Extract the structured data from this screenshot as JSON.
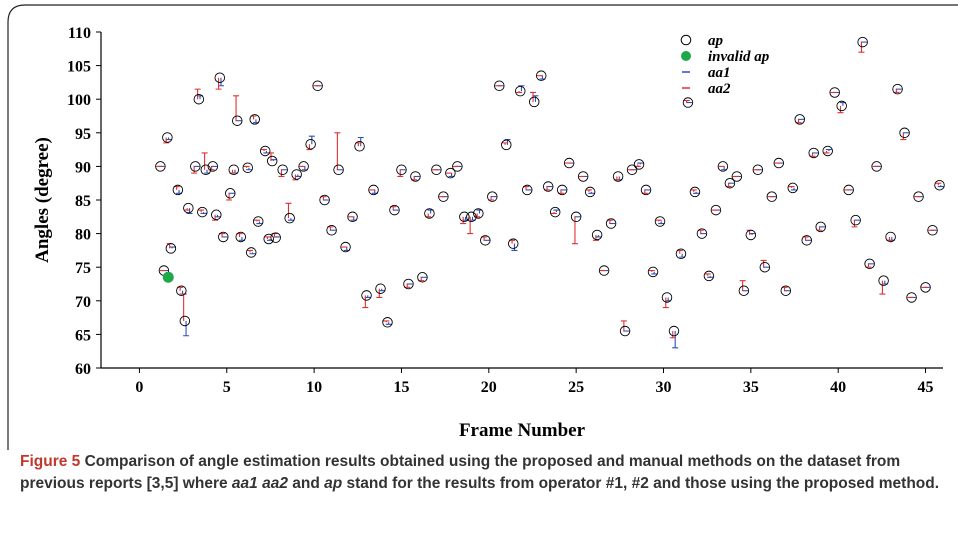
{
  "chart_data": {
    "type": "scatter",
    "ylabel": "Angles (degree)",
    "xlabel": "Frame Number",
    "xlim": [
      -2.2,
      46
    ],
    "ylim": [
      60,
      110
    ],
    "xticks": [
      0,
      5,
      10,
      15,
      20,
      25,
      30,
      35,
      40,
      45
    ],
    "yticks": [
      60,
      65,
      70,
      75,
      80,
      85,
      90,
      95,
      100,
      105,
      110
    ],
    "legend": "top-right",
    "x": [
      1.2,
      1.4,
      1.6,
      1.8,
      2.2,
      2.4,
      2.6,
      2.8,
      3.2,
      3.4,
      3.6,
      3.8,
      4.2,
      4.4,
      4.6,
      4.8,
      5.2,
      5.4,
      5.6,
      5.8,
      6.2,
      6.4,
      6.6,
      6.8,
      7.2,
      7.4,
      7.6,
      7.8,
      8.2,
      8.6,
      9.0,
      9.4,
      9.8,
      10.2,
      10.6,
      11.0,
      11.4,
      11.8,
      12.2,
      12.6,
      13.0,
      13.4,
      13.8,
      14.2,
      14.6,
      15.0,
      15.4,
      15.8,
      16.2,
      16.6,
      17.0,
      17.4,
      17.8,
      18.2,
      18.6,
      19.0,
      19.4,
      19.8,
      20.2,
      20.6,
      21.0,
      21.4,
      21.8,
      22.2,
      22.6,
      23.0,
      23.4,
      23.8,
      24.2,
      24.6,
      25.0,
      25.4,
      25.8,
      26.2,
      26.6,
      27.0,
      27.4,
      27.8,
      28.2,
      28.6,
      29.0,
      29.4,
      29.8,
      30.2,
      30.6,
      31.0,
      31.4,
      31.8,
      32.2,
      32.6,
      33.0,
      33.4,
      33.8,
      34.2,
      34.6,
      35.0,
      35.4,
      35.8,
      36.2,
      36.6,
      37.0,
      37.4,
      37.8,
      38.2,
      38.6,
      39.0,
      39.4,
      39.8,
      40.2,
      40.6,
      41.0,
      41.4,
      41.8,
      42.2,
      42.6,
      43.0,
      43.4,
      43.8,
      44.2,
      44.6,
      45.0,
      45.4,
      45.8
    ],
    "series": [
      {
        "name": "ap",
        "marker": "circle",
        "color": "#000000",
        "values": [
          90,
          74.5,
          94.3,
          77.8,
          86.5,
          71.5,
          67,
          83.8,
          90,
          100,
          83.2,
          89.5,
          90,
          82.8,
          103.2,
          79.5,
          86,
          89.5,
          96.8,
          79.5,
          89.8,
          77.2,
          97,
          81.8,
          92.3,
          79.2,
          90.8,
          79.4,
          89.5,
          82.3,
          88.8,
          90,
          93.3,
          102,
          85,
          80.5,
          89.5,
          78,
          82.5,
          93,
          70.8,
          86.5,
          71.8,
          66.8,
          83.5,
          89.5,
          72.5,
          88.5,
          73.5,
          83,
          89.5,
          85.5,
          89,
          90,
          82.5,
          82.5,
          83,
          79,
          85.5,
          102,
          93.2,
          78.5,
          101.2,
          86.5,
          99.6,
          103.5,
          87,
          83.2,
          86.5,
          90.5,
          82.5,
          88.5,
          86.2,
          79.8,
          74.5,
          81.5,
          88.5,
          65.5,
          89.5,
          90.3,
          86.5,
          74.3,
          81.8,
          70.5,
          65.5,
          77,
          99.5,
          86.2,
          80,
          73.7,
          83.5,
          90,
          87.5,
          88.5,
          71.5,
          79.8,
          89.5,
          75,
          85.5,
          90.5,
          71.5,
          86.8,
          97,
          79,
          92,
          81,
          92.3,
          101,
          99,
          86.5,
          82,
          108.5,
          75.5,
          90,
          73,
          79.5,
          101.5,
          95,
          70.5,
          85.5,
          72,
          80.5,
          87.2
        ]
      },
      {
        "name": "invalid ap",
        "marker": "dot",
        "color": "#1fa84a",
        "x": [
          1.65
        ],
        "values": [
          73.5
        ]
      },
      {
        "name": "aa1",
        "marker": "dash",
        "color": "#2f4fbf",
        "values": [
          90,
          74.5,
          94,
          78,
          86,
          71,
          64.8,
          83,
          90,
          100.5,
          83,
          89,
          90,
          82.5,
          102,
          79.5,
          86,
          89,
          96.8,
          79,
          89.5,
          77,
          96.5,
          81.5,
          92,
          79,
          91,
          79.5,
          89.5,
          82,
          88.5,
          89.5,
          94.5,
          102,
          85,
          80.5,
          89.5,
          77.5,
          82,
          94.3,
          70.5,
          86,
          71.5,
          66.5,
          83.5,
          89.5,
          72.5,
          88.5,
          73.5,
          83.5,
          89.5,
          85.5,
          88.5,
          90,
          82,
          82,
          83.5,
          79,
          85.5,
          102,
          94,
          77.5,
          102,
          86.5,
          100.5,
          103,
          87,
          83.5,
          86.5,
          90.5,
          82.5,
          88.5,
          86,
          79.5,
          74.5,
          81.5,
          88,
          65.5,
          89.5,
          90.5,
          86.5,
          74,
          81.5,
          70,
          63,
          76.5,
          99.5,
          86,
          80,
          73.5,
          83.5,
          89.5,
          87.5,
          88.5,
          71.5,
          80,
          89.5,
          75,
          85.5,
          90.5,
          71.5,
          86.5,
          97,
          79,
          92,
          81,
          92.5,
          101,
          99.5,
          86.5,
          82,
          108.5,
          75.5,
          90,
          72.5,
          79,
          101.5,
          95,
          70.5,
          85.5,
          72,
          80.5,
          87
        ]
      },
      {
        "name": "aa2",
        "marker": "dash",
        "color": "#e03131",
        "values": [
          90,
          74.5,
          93.5,
          78.5,
          87,
          72,
          71,
          83.5,
          89,
          101.5,
          83.5,
          92,
          89.5,
          82,
          101.5,
          80,
          85,
          89,
          100.5,
          80,
          90,
          77.5,
          97.5,
          82,
          92.5,
          79.5,
          92,
          80,
          88.5,
          84.5,
          88,
          90,
          92.5,
          102,
          85.5,
          81,
          95,
          78,
          82.5,
          93.5,
          69,
          86.5,
          70.5,
          67,
          84,
          88.5,
          72,
          88,
          73,
          82.5,
          89.5,
          85.5,
          89,
          90,
          81.5,
          80,
          82.5,
          79.5,
          85,
          102,
          93.5,
          79,
          101,
          87,
          101,
          103.5,
          86.5,
          83,
          86,
          90.5,
          78.5,
          88.5,
          86.5,
          79,
          74.5,
          82,
          88,
          67,
          89.5,
          90,
          86,
          74.5,
          82,
          69,
          64.5,
          77.5,
          99.8,
          86.5,
          80.5,
          74,
          83.5,
          90,
          87,
          88.5,
          73,
          80.5,
          89.5,
          76,
          85.5,
          90.5,
          72,
          87,
          96.5,
          79.5,
          91.5,
          80.5,
          92,
          101,
          98,
          86.5,
          81,
          107,
          75,
          90,
          71,
          79,
          101,
          94,
          70.5,
          85.5,
          72,
          80.5,
          87.5
        ]
      }
    ]
  },
  "caption": {
    "label": "Figure 5",
    "parts": [
      "Comparison of angle estimation results obtained using the proposed and manual methods on the dataset from previous reports  [3,5] where ",
      "aa1 aa2",
      " and ",
      "ap",
      " stand for the results from operator #1, #2 and those using the proposed method."
    ]
  }
}
